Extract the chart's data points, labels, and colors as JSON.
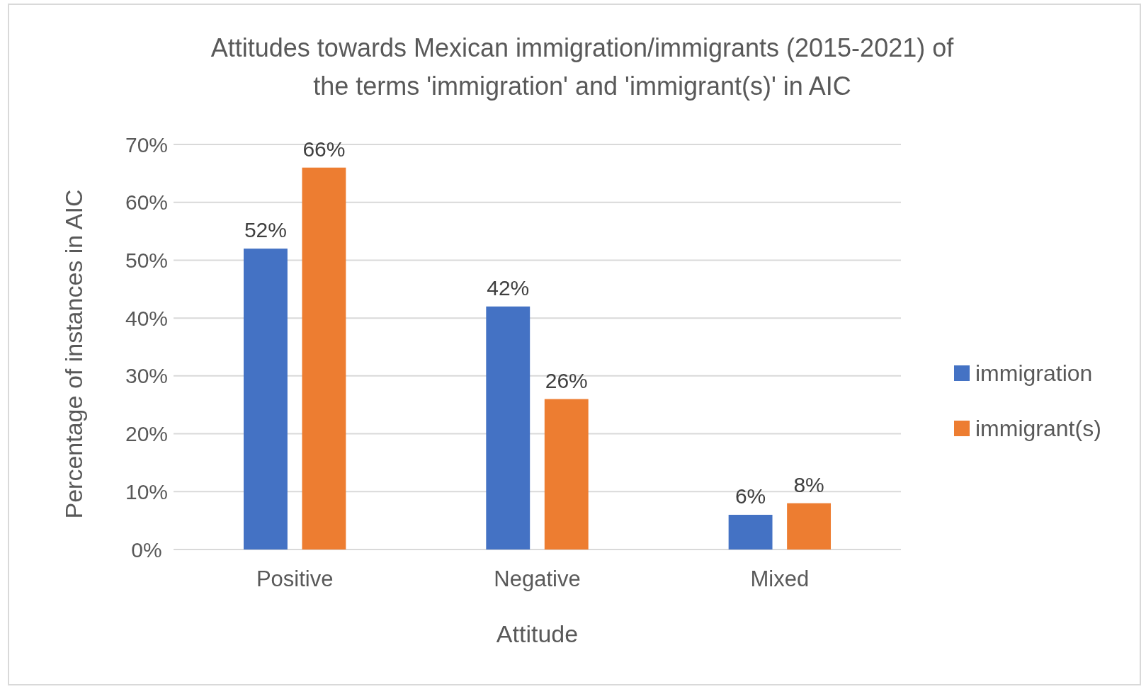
{
  "chart_data": {
    "type": "bar",
    "title": "Attitudes towards Mexican immigration/immigrants (2015-2021) of\nthe terms 'immigration' and 'immigrant(s)' in AIC",
    "xlabel": "Attitude",
    "ylabel": "Percentage of instances in AIC",
    "categories": [
      "Positive",
      "Negative",
      "Mixed"
    ],
    "series": [
      {
        "name": "immigration",
        "color": "#4472c4",
        "values": [
          52,
          42,
          6
        ],
        "value_labels": [
          "52%",
          "42%",
          "6%"
        ]
      },
      {
        "name": "immigrant(s)",
        "color": "#ed7d31",
        "values": [
          66,
          26,
          8
        ],
        "value_labels": [
          "66%",
          "26%",
          "8%"
        ]
      }
    ],
    "ylim": [
      0,
      70
    ],
    "yticks": [
      {
        "value": 0,
        "label": "0%"
      },
      {
        "value": 10,
        "label": "10%"
      },
      {
        "value": 20,
        "label": "20%"
      },
      {
        "value": 30,
        "label": "30%"
      },
      {
        "value": 40,
        "label": "40%"
      },
      {
        "value": 50,
        "label": "50%"
      },
      {
        "value": 60,
        "label": "60%"
      },
      {
        "value": 70,
        "label": "70%"
      }
    ],
    "grid": "y",
    "legend": "right"
  }
}
